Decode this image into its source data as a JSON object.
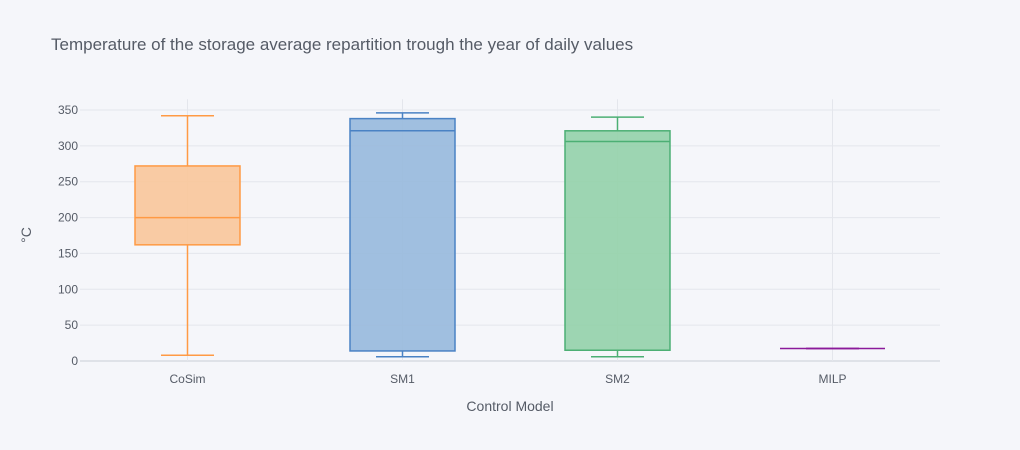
{
  "chart_data": {
    "type": "box",
    "title": "Temperature of the storage average repartition trough the year of daily values",
    "xlabel": "Control Model",
    "ylabel": "°C",
    "ylim": [
      0,
      365
    ],
    "yticks": [
      0,
      50,
      100,
      150,
      200,
      250,
      300,
      350
    ],
    "grid": true,
    "legend": "none",
    "categories": [
      "CoSim",
      "SM1",
      "SM2",
      "MILP"
    ],
    "series": [
      {
        "category": "CoSim",
        "min": 8,
        "q1": 162,
        "median": 200,
        "q3": 272,
        "max": 342,
        "stroke": "#ff9a44",
        "fill": "#f9c69a"
      },
      {
        "category": "SM1",
        "min": 6,
        "q1": 14,
        "median": 321,
        "q3": 338,
        "max": 346,
        "stroke": "#4a82c4",
        "fill": "#97b9dd"
      },
      {
        "category": "SM2",
        "min": 6,
        "q1": 15,
        "median": 306,
        "q3": 321,
        "max": 340,
        "stroke": "#4caf74",
        "fill": "#94d1aa"
      },
      {
        "category": "MILP",
        "min": 17.5,
        "q1": 17.5,
        "median": 17.5,
        "q3": 17.5,
        "max": 17.5,
        "stroke": "#8b1a9a",
        "fill": "#c89ad0"
      }
    ]
  }
}
